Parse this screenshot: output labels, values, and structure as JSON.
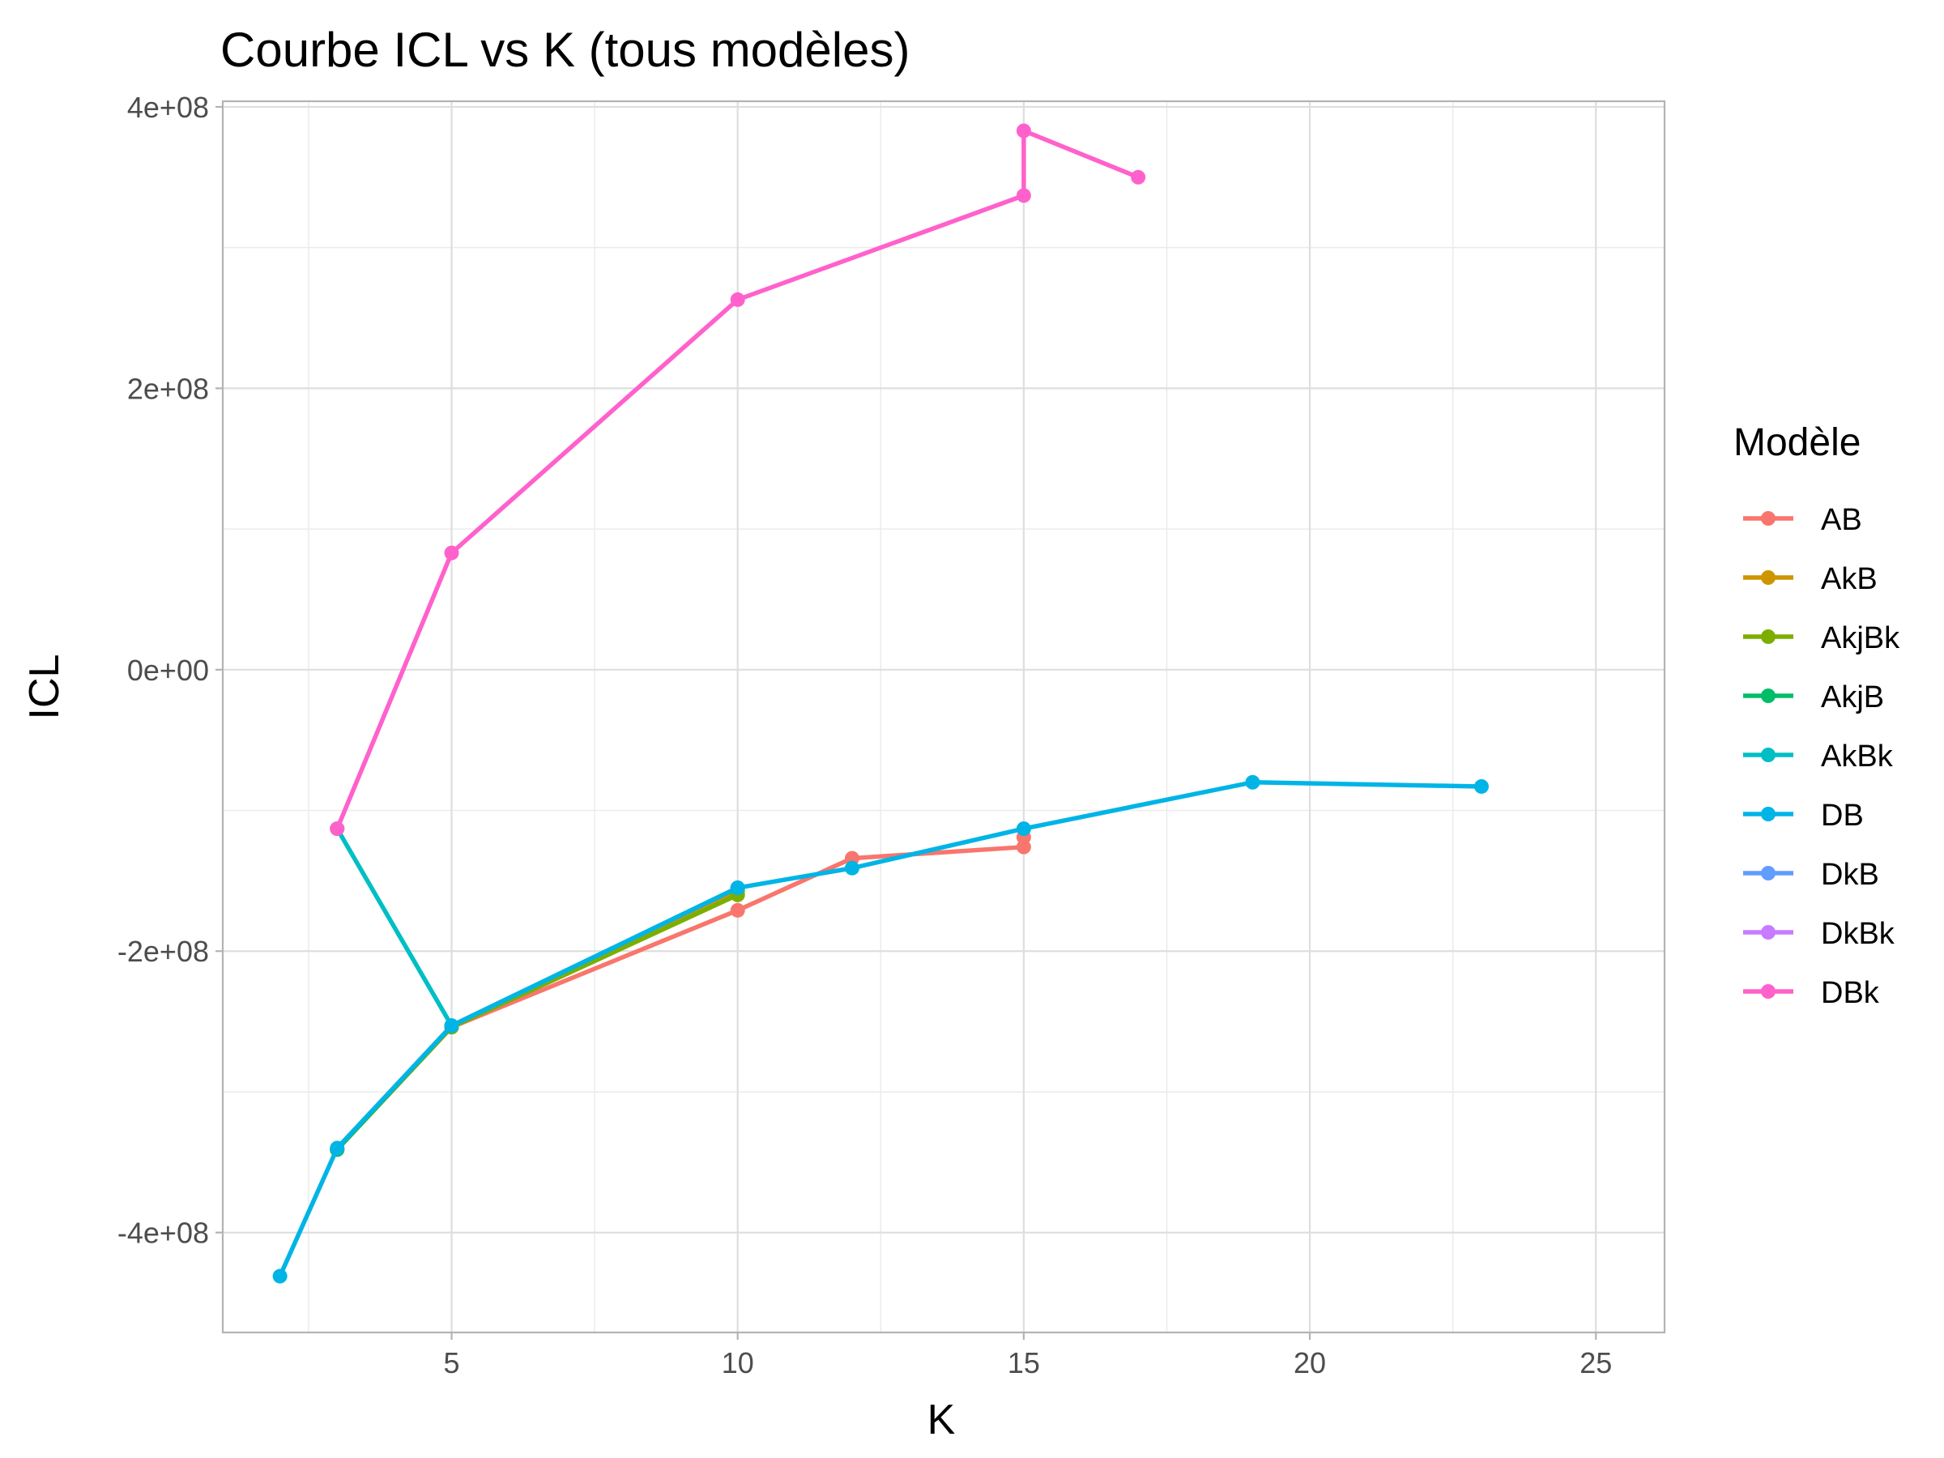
{
  "chart_data": {
    "type": "line",
    "title": "Courbe ICL vs K (tous modèles)",
    "xlabel": "K",
    "ylabel": "ICL",
    "xlim": [
      1.0,
      26.2
    ],
    "ylim": [
      -471000000,
      404000000
    ],
    "x_ticks": [
      5,
      10,
      15,
      20,
      25
    ],
    "x_tick_labels": [
      "5",
      "10",
      "15",
      "20",
      "25"
    ],
    "y_ticks": [
      -400000000,
      -200000000,
      0,
      200000000,
      400000000
    ],
    "y_tick_labels": [
      "-4e+08",
      "-2e+08",
      "0e+00",
      "2e+08",
      "4e+08"
    ],
    "grid": true,
    "legend": {
      "title": "Modèle",
      "position": "right"
    },
    "series": [
      {
        "name": "AB",
        "color": "#F8766D",
        "x": [
          3,
          5,
          10,
          12,
          15,
          15
        ],
        "y": [
          -341000000,
          -254000000,
          -171000000,
          -134000000,
          -126000000,
          -119000000
        ]
      },
      {
        "name": "AkB",
        "color": "#CD9600",
        "x": [
          3,
          5,
          10
        ],
        "y": [
          -341000000,
          -254000000,
          -157000000
        ]
      },
      {
        "name": "AkjBk",
        "color": "#7CAE00",
        "x": [
          3,
          5,
          10
        ],
        "y": [
          -341000000,
          -254000000,
          -160000000
        ]
      },
      {
        "name": "AkjB",
        "color": "#00BE67",
        "x": [
          3,
          5,
          10
        ],
        "y": [
          -341000000,
          -253000000,
          -155000000
        ]
      },
      {
        "name": "AkBk",
        "color": "#00BFC4",
        "x": [
          3,
          5,
          10
        ],
        "y": [
          -113000000,
          -253000000,
          -155000000
        ]
      },
      {
        "name": "DB",
        "color": "#00B4E6",
        "x": [
          2,
          3,
          5,
          10,
          12,
          15,
          19,
          23
        ],
        "y": [
          -431000000,
          -340000000,
          -253000000,
          -155000000,
          -141000000,
          -113000000,
          -80000000,
          -83000000
        ]
      },
      {
        "name": "DkB",
        "color": "#619CFF",
        "x": [],
        "y": []
      },
      {
        "name": "DkBk",
        "color": "#C77CFF",
        "x": [],
        "y": []
      },
      {
        "name": "DBk",
        "color": "#FF61CC",
        "x": [
          3,
          5,
          10,
          15,
          15,
          17
        ],
        "y": [
          -113000000,
          83000000,
          263000000,
          337000000,
          383000000,
          350000000
        ]
      }
    ]
  }
}
